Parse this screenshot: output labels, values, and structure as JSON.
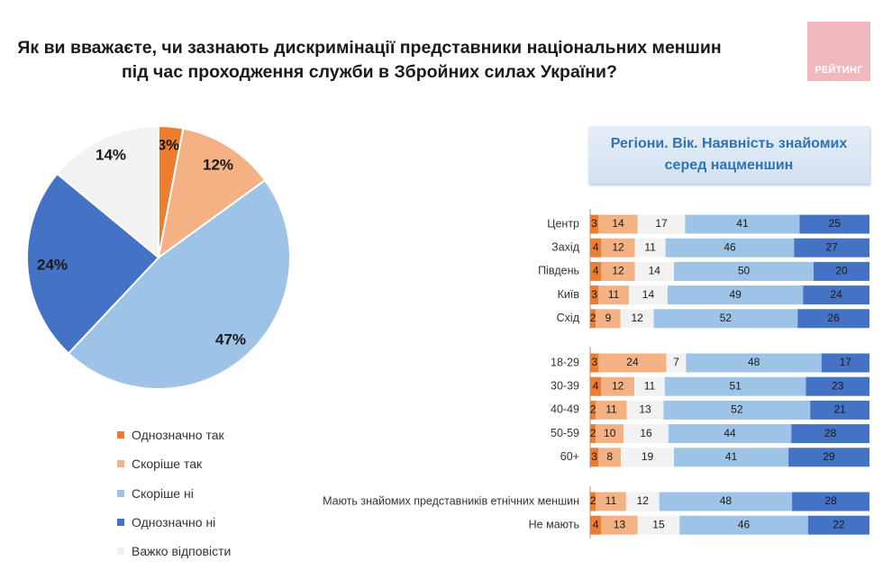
{
  "title_line1": "Як ви вважаєте, чи зазнають дискримінації представники національних меншин",
  "title_line2": "під час проходження служби в Збройних силах України?",
  "logo_text": "РЕЙТИНГ",
  "panel_line1": "Регіони. Вік. Наявність знайомих",
  "panel_line2": "серед нацменшин",
  "colors": {
    "definitely_yes": "#ed7d31",
    "rather_yes": "#f4b183",
    "hard_to_say": "#f2f2f2",
    "rather_no": "#9dc3e6",
    "definitely_no": "#4472c4"
  },
  "chart_data": [
    {
      "type": "pie",
      "series": [
        {
          "name": "Однозначно так",
          "value": 3,
          "label": "3%"
        },
        {
          "name": "Скоріше так",
          "value": 12,
          "label": "12%"
        },
        {
          "name": "Скоріше ні",
          "value": 47,
          "label": "47%"
        },
        {
          "name": "Однозначно ні",
          "value": 24,
          "label": "24%"
        },
        {
          "name": "Важко відповісти",
          "value": 14,
          "label": "14%"
        }
      ],
      "legend_placement": "bottom"
    },
    {
      "type": "bar",
      "orientation": "horizontal",
      "stacked": "percent",
      "series_order": [
        "Однозначно так",
        "Скоріше так",
        "Важко відповісти",
        "Скоріше ні",
        "Однозначно ні"
      ],
      "groups": [
        {
          "rows": [
            {
              "label": "Центр",
              "values": [
                3,
                14,
                17,
                41,
                25
              ]
            },
            {
              "label": "Захід",
              "values": [
                4,
                12,
                11,
                46,
                27
              ]
            },
            {
              "label": "Південь",
              "values": [
                4,
                12,
                14,
                50,
                20
              ]
            },
            {
              "label": "Київ",
              "values": [
                3,
                11,
                14,
                49,
                24
              ]
            },
            {
              "label": "Схід",
              "values": [
                2,
                9,
                12,
                52,
                26
              ]
            }
          ]
        },
        {
          "rows": [
            {
              "label": "18-29",
              "values": [
                3,
                24,
                7,
                48,
                17
              ]
            },
            {
              "label": "30-39",
              "values": [
                4,
                12,
                11,
                51,
                23
              ]
            },
            {
              "label": "40-49",
              "values": [
                2,
                11,
                13,
                52,
                21
              ]
            },
            {
              "label": "50-59",
              "values": [
                2,
                10,
                16,
                44,
                28
              ]
            },
            {
              "label": "60+",
              "values": [
                3,
                8,
                19,
                41,
                29
              ]
            }
          ]
        },
        {
          "rows": [
            {
              "label": "Мають знайомих представників етнічних меншин",
              "values": [
                2,
                11,
                12,
                48,
                28
              ]
            },
            {
              "label": "Не мають",
              "values": [
                4,
                13,
                15,
                46,
                22
              ]
            }
          ]
        }
      ]
    }
  ]
}
